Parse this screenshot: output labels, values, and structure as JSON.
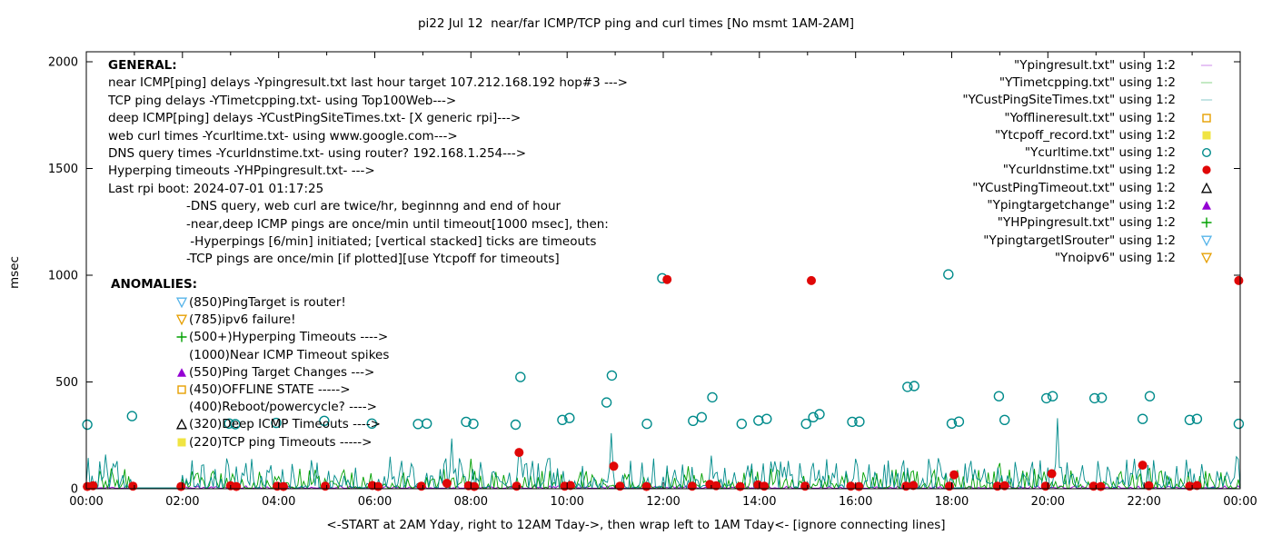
{
  "title": "pi22 Jul 12  near/far ICMP/TCP ping and curl times [No msmt 1AM-2AM]",
  "axes": {
    "ylabel": "msec",
    "xlabel": "<-START at 2AM Yday, right to 12AM Tday->, then wrap left to 1AM Tday<- [ignore connecting lines]"
  },
  "general": {
    "heading": "GENERAL:",
    "lines": [
      "near ICMP[ping] delays -Ypingresult.txt last hour target 107.212.168.192 hop#3 --->",
      "TCP ping delays -YTimetcpping.txt- using Top100Web--->",
      "deep ICMP[ping] delays -YCustPingSiteTimes.txt- [X generic rpi]--->",
      "web curl times -Ycurltime.txt- using www.google.com--->",
      "DNS query times -Ycurldnstime.txt- using router? 192.168.1.254--->",
      "Hyperping timeouts -YHPpingresult.txt- --->",
      "Last rpi boot: 2024-07-01 01:17:25"
    ],
    "notes": [
      "-DNS query, web curl are twice/hr, beginnng and end of hour",
      "-near,deep ICMP pings are once/min until timeout[1000 msec], then:",
      " -Hyperpings [6/min] initiated; [vertical stacked] ticks are timeouts",
      "-TCP pings are once/min [if plotted][use Ytcpoff for timeouts]"
    ]
  },
  "anomalies": {
    "heading": "ANOMALIES:",
    "items": [
      {
        "marker": "triangle-down-open",
        "color": "#56b4e9",
        "text": "(850)PingTarget is router!"
      },
      {
        "marker": "triangle-down-open",
        "color": "#e69f00",
        "text": "(785)ipv6 failure!"
      },
      {
        "marker": "plus",
        "color": "#00a000",
        "text": "(500+)Hyperping Timeouts ---->"
      },
      {
        "marker": "none",
        "color": "",
        "text": "(1000)Near ICMP Timeout spikes"
      },
      {
        "marker": "triangle-up-filled",
        "color": "#9400d3",
        "text": "(550)Ping Target Changes --->"
      },
      {
        "marker": "square-open",
        "color": "#e69f00",
        "text": "(450)OFFLINE STATE ----->"
      },
      {
        "marker": "none",
        "color": "",
        "text": "(400)Reboot/powercycle? ---->"
      },
      {
        "marker": "triangle-up-open",
        "color": "#000000",
        "text": "(320)Deep ICMP Timeouts ---->"
      },
      {
        "marker": "square-filled",
        "color": "#f0e442",
        "text": "(220)TCP ping Timeouts ----->"
      }
    ]
  },
  "legend": {
    "items": [
      {
        "label": "\"Ypingresult.txt\" using 1:2",
        "marker": "line",
        "color": "#9400d3"
      },
      {
        "label": "\"YTimetcpping.txt\" using 1:2",
        "marker": "line",
        "color": "#00a000"
      },
      {
        "label": "\"YCustPingSiteTimes.txt\" using 1:2",
        "marker": "line",
        "color": "#008b8b"
      },
      {
        "label": "\"Yofflineresult.txt\" using 1:2",
        "marker": "square-open",
        "color": "#e69f00"
      },
      {
        "label": "\"Ytcpoff_record.txt\" using 1:2",
        "marker": "square-filled",
        "color": "#f0e442"
      },
      {
        "label": "\"Ycurltime.txt\" using 1:2",
        "marker": "circle-open",
        "color": "#008b8b"
      },
      {
        "label": "\"Ycurldnstime.txt\" using 1:2",
        "marker": "circle-filled",
        "color": "#e00707"
      },
      {
        "label": "\"YCustPingTimeout.txt\" using 1:2",
        "marker": "triangle-up-open",
        "color": "#000000"
      },
      {
        "label": "\"Ypingtargetchange\" using 1:2",
        "marker": "triangle-up-filled",
        "color": "#9400d3"
      },
      {
        "label": "\"YHPpingresult.txt\" using 1:2",
        "marker": "plus",
        "color": "#00a000"
      },
      {
        "label": "\"YpingtargetISrouter\" using 1:2",
        "marker": "triangle-down-open",
        "color": "#56b4e9"
      },
      {
        "label": "\"Ynoipv6\" using 1:2",
        "marker": "triangle-down-open",
        "color": "#e69f00"
      }
    ]
  },
  "chart_data": {
    "type": "mixed",
    "title": "pi22 Jul 12  near/far ICMP/TCP ping and curl times [No msmt 1AM-2AM]",
    "x_axis": {
      "range_hours": [
        0,
        24
      ],
      "tick_labels": [
        "00:00",
        "02:00",
        "04:00",
        "06:00",
        "08:00",
        "10:00",
        "12:00",
        "14:00",
        "16:00",
        "18:00",
        "20:00",
        "22:00",
        "00:00"
      ],
      "minor_tick_every_hours": 1
    },
    "y_axis": {
      "label": "msec",
      "range": [
        0,
        2000
      ],
      "ticks": [
        0,
        500,
        1000,
        1500,
        2000
      ]
    },
    "gap_no_measurement_hours": [
      1,
      2
    ],
    "series": [
      {
        "name": "Ypingresult.txt",
        "label": "near ICMP ping delays",
        "type": "noisy-line",
        "color": "#9400d3",
        "band_msec": [
          2,
          14
        ],
        "seed": 11,
        "spikes": []
      },
      {
        "name": "YTimetcpping.txt",
        "label": "TCP ping delays",
        "type": "noisy-line",
        "color": "#00a000",
        "band_msec": [
          2,
          95
        ],
        "seed": 23,
        "spikes": [
          [
            0.5,
            95
          ],
          [
            5.3,
            70
          ],
          [
            8.0,
            140
          ],
          [
            12.5,
            105
          ],
          [
            19.0,
            120
          ],
          [
            21.5,
            80
          ]
        ]
      },
      {
        "name": "YCustPingSiteTimes.txt",
        "label": "deep ICMP ping delays",
        "type": "noisy-line",
        "color": "#008b8b",
        "band_msec": [
          4,
          145
        ],
        "seed": 37,
        "spikes": [
          [
            0.4,
            160
          ],
          [
            3.3,
            120
          ],
          [
            6.3,
            150
          ],
          [
            7.6,
            235
          ],
          [
            9.0,
            185
          ],
          [
            9.6,
            140
          ],
          [
            10.9,
            260
          ],
          [
            13.0,
            155
          ],
          [
            14.6,
            130
          ],
          [
            16.0,
            140
          ],
          [
            18.4,
            130
          ],
          [
            20.2,
            330
          ],
          [
            21.8,
            140
          ],
          [
            23.9,
            150
          ]
        ]
      },
      {
        "name": "Ycurltime.txt",
        "label": "web curl times",
        "type": "scatter",
        "marker": "circle-open",
        "color": "#008b8b",
        "points_hour_msec": [
          [
            0.02,
            300
          ],
          [
            0.95,
            340
          ],
          [
            2.97,
            305
          ],
          [
            3.1,
            302
          ],
          [
            3.95,
            308
          ],
          [
            4.95,
            318
          ],
          [
            5.94,
            305
          ],
          [
            6.9,
            303
          ],
          [
            7.08,
            305
          ],
          [
            7.9,
            313
          ],
          [
            8.05,
            304
          ],
          [
            8.93,
            300
          ],
          [
            9.03,
            523
          ],
          [
            9.9,
            322
          ],
          [
            10.05,
            331
          ],
          [
            10.82,
            404
          ],
          [
            10.93,
            530
          ],
          [
            11.66,
            304
          ],
          [
            11.98,
            986
          ],
          [
            12.62,
            318
          ],
          [
            12.8,
            335
          ],
          [
            13.02,
            428
          ],
          [
            13.63,
            304
          ],
          [
            13.98,
            319
          ],
          [
            14.15,
            327
          ],
          [
            14.97,
            304
          ],
          [
            15.12,
            335
          ],
          [
            15.25,
            349
          ],
          [
            15.93,
            313
          ],
          [
            16.08,
            314
          ],
          [
            17.08,
            477
          ],
          [
            17.22,
            481
          ],
          [
            17.93,
            1004
          ],
          [
            18.0,
            305
          ],
          [
            18.15,
            314
          ],
          [
            18.98,
            433
          ],
          [
            19.1,
            322
          ],
          [
            19.97,
            424
          ],
          [
            20.1,
            433
          ],
          [
            20.97,
            424
          ],
          [
            21.12,
            426
          ],
          [
            21.97,
            327
          ],
          [
            22.12,
            433
          ],
          [
            22.95,
            322
          ],
          [
            23.1,
            327
          ],
          [
            23.97,
            304
          ]
        ]
      },
      {
        "name": "Ycurldnstime.txt",
        "label": "DNS query times",
        "type": "scatter",
        "marker": "circle-filled",
        "color": "#e00707",
        "points_hour_msec": [
          [
            0.02,
            10
          ],
          [
            0.14,
            14
          ],
          [
            0.97,
            12
          ],
          [
            1.97,
            10
          ],
          [
            3.0,
            14
          ],
          [
            3.12,
            10
          ],
          [
            3.97,
            12
          ],
          [
            4.1,
            10
          ],
          [
            4.97,
            12
          ],
          [
            5.95,
            15
          ],
          [
            6.07,
            10
          ],
          [
            6.97,
            12
          ],
          [
            7.5,
            25
          ],
          [
            7.95,
            14
          ],
          [
            8.07,
            10
          ],
          [
            8.95,
            12
          ],
          [
            9.0,
            170
          ],
          [
            9.95,
            12
          ],
          [
            10.07,
            15
          ],
          [
            10.97,
            105
          ],
          [
            11.1,
            12
          ],
          [
            11.65,
            10
          ],
          [
            12.08,
            980
          ],
          [
            12.6,
            12
          ],
          [
            12.97,
            20
          ],
          [
            13.1,
            14
          ],
          [
            13.6,
            10
          ],
          [
            13.97,
            18
          ],
          [
            14.1,
            12
          ],
          [
            14.95,
            12
          ],
          [
            15.08,
            975
          ],
          [
            15.9,
            12
          ],
          [
            16.07,
            10
          ],
          [
            17.05,
            12
          ],
          [
            17.2,
            15
          ],
          [
            17.95,
            12
          ],
          [
            18.05,
            65
          ],
          [
            18.95,
            12
          ],
          [
            19.1,
            14
          ],
          [
            19.95,
            12
          ],
          [
            20.08,
            70
          ],
          [
            20.95,
            12
          ],
          [
            21.1,
            10
          ],
          [
            21.97,
            110
          ],
          [
            22.1,
            14
          ],
          [
            22.95,
            12
          ],
          [
            23.1,
            15
          ],
          [
            23.97,
            975
          ]
        ]
      },
      {
        "name": "YHPpingresult.txt",
        "label": "Hyperping timeouts",
        "type": "scatter",
        "marker": "plus",
        "color": "#00a000",
        "points_hour_msec": []
      }
    ]
  }
}
